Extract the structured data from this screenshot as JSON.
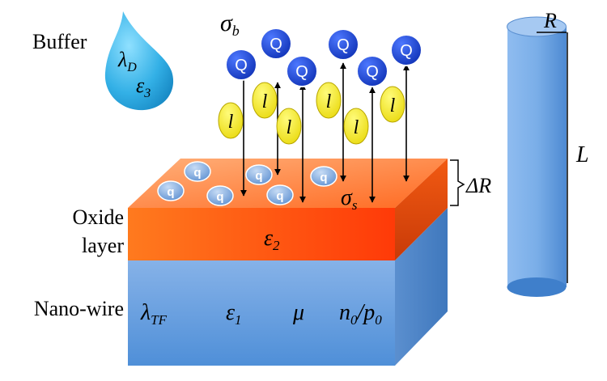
{
  "labels": {
    "buffer": "Buffer",
    "oxide_line1": "Oxide",
    "oxide_line2": "layer",
    "nanowire": "Nano-wire",
    "sigma_b": "σ",
    "sigma_b_sub": "b",
    "sigma_s": "σ",
    "sigma_s_sub": "s",
    "delta_r": "ΔR",
    "radius": "R",
    "length": "L",
    "lambda_d": "λ",
    "lambda_d_sub": "D",
    "eps3": "ε",
    "eps3_sub": "3",
    "eps2": "ε",
    "eps2_sub": "2",
    "lambda_tf": "λ",
    "lambda_tf_sub": "TF",
    "eps1": "ε",
    "eps1_sub": "1",
    "mu": "μ",
    "n0": "n",
    "n0_sub": "0",
    "slash": "/",
    "p0": "p",
    "p0_sub": "0"
  },
  "charges": {
    "big_q_label": "Q",
    "small_q_label": "q",
    "linker_label": "l"
  },
  "colors": {
    "q_blue": "#1a3ec9",
    "small_q": "#6f9fd6",
    "linker_yellow": "#f4ec1c",
    "oxide_orange": "#ff5a10",
    "nanowire_blue": "#6fa3df",
    "drop_blue": "#2aa3dc"
  }
}
